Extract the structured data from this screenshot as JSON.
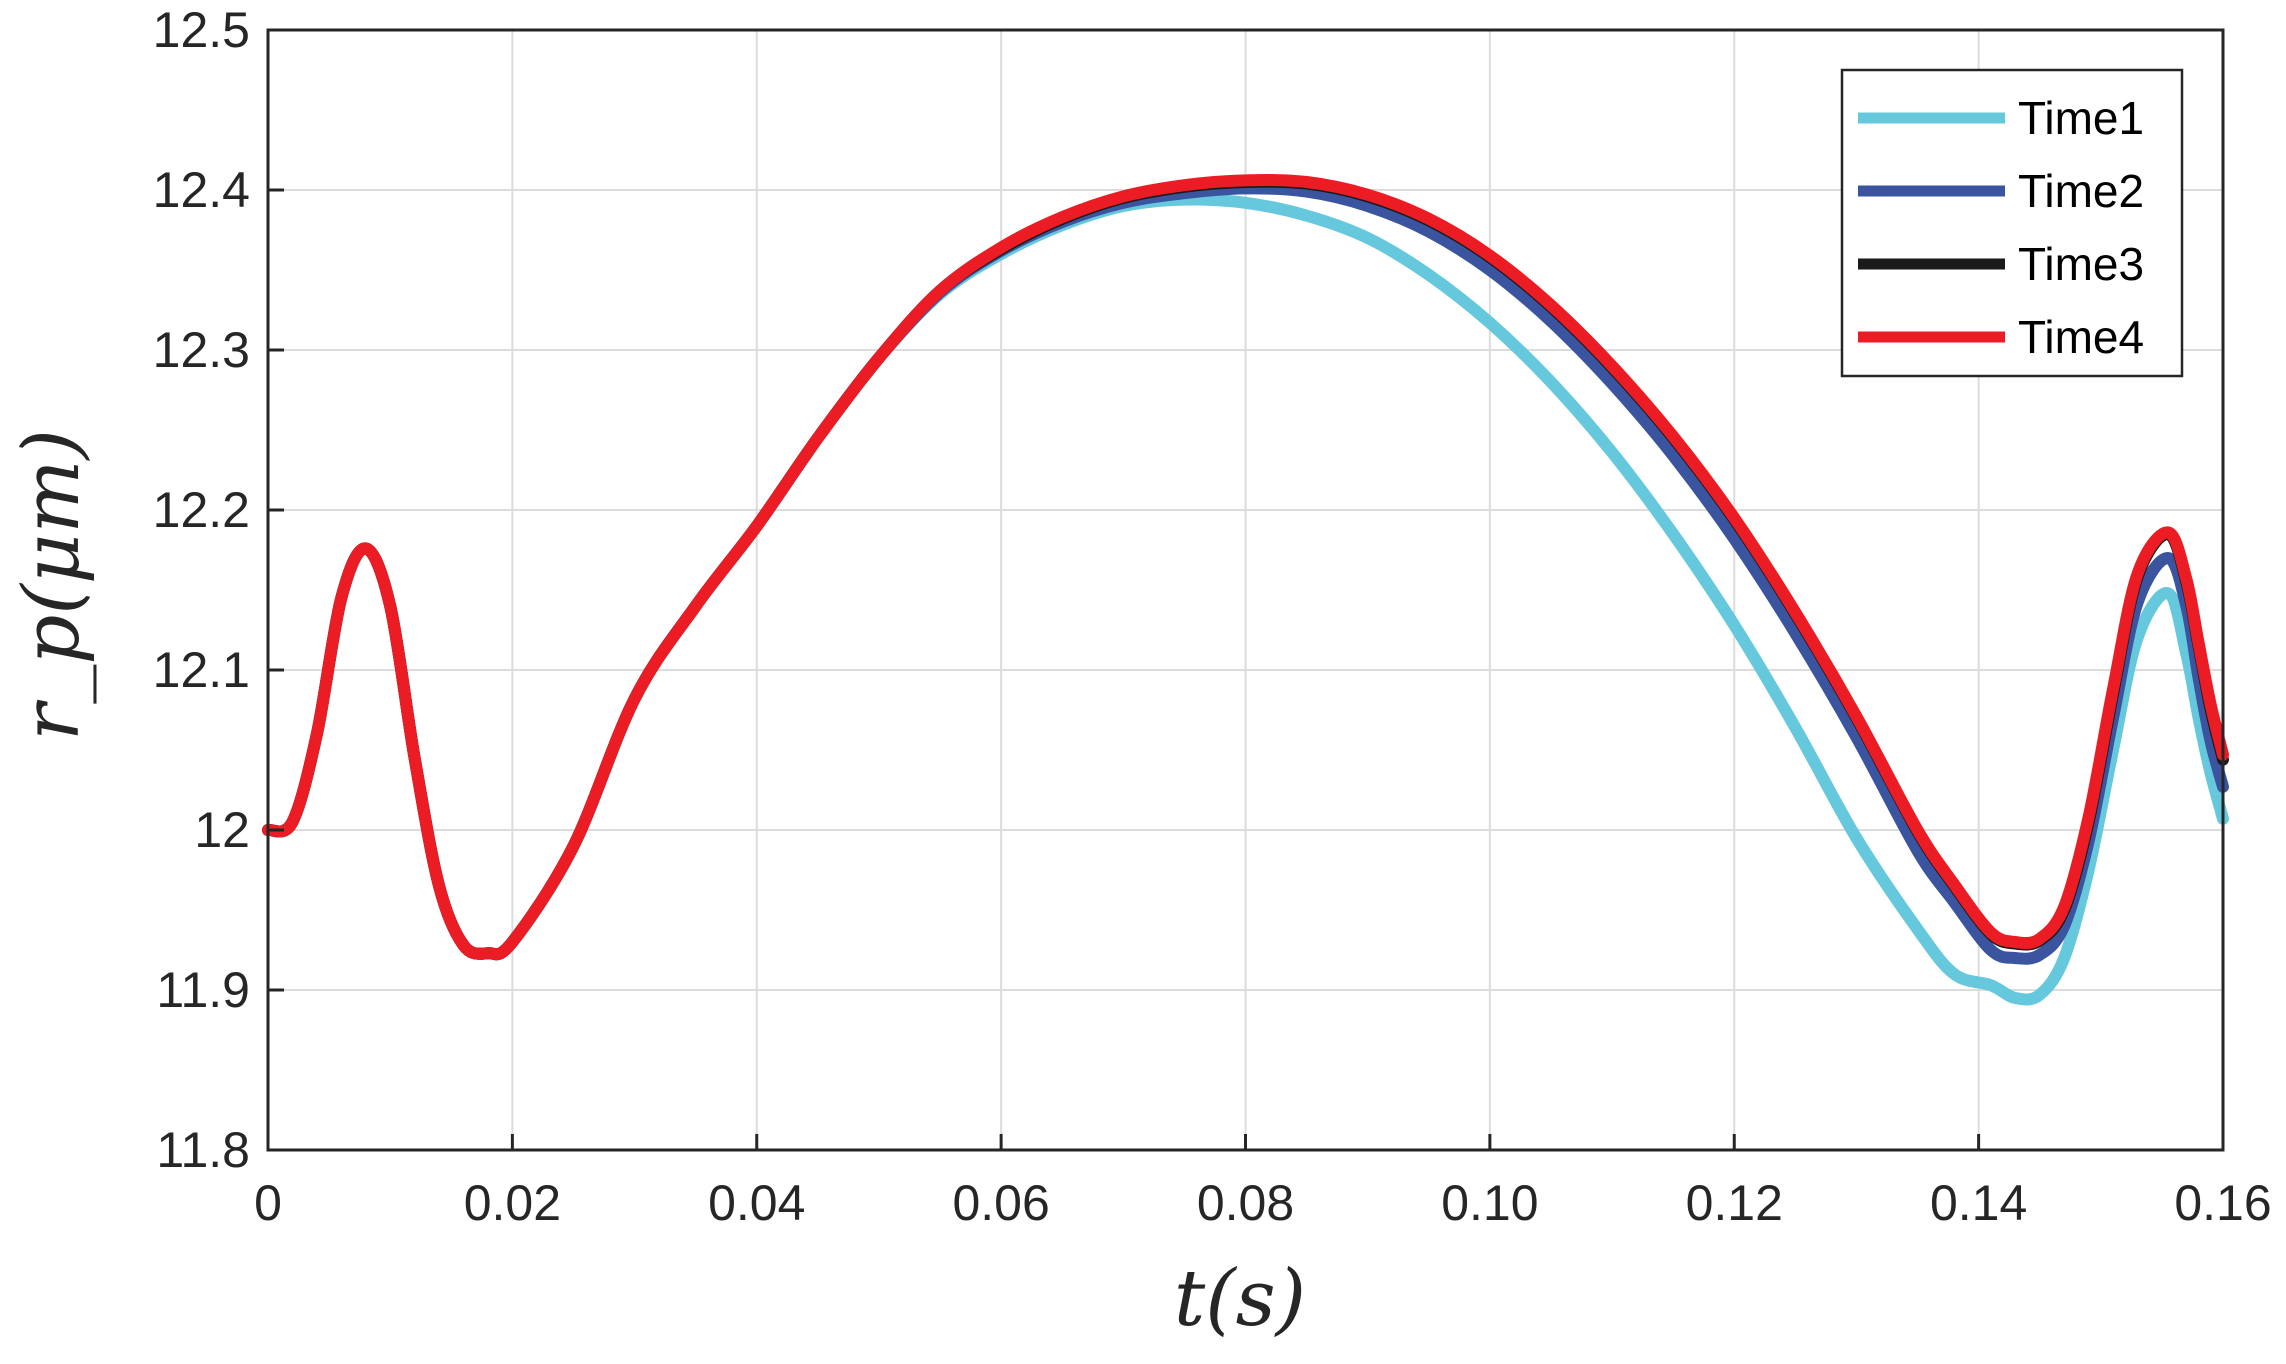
{
  "chart_data": {
    "type": "line",
    "xlabel": "t(s)",
    "ylabel": "r_p(μm)",
    "xlim": [
      0,
      0.16
    ],
    "ylim": [
      11.8,
      12.5
    ],
    "xticks": [
      "0",
      "0.02",
      "0.04",
      "0.06",
      "0.08",
      "0.10",
      "0.12",
      "0.14",
      "0.16"
    ],
    "yticks": [
      "11.8",
      "11.9",
      "12",
      "12.1",
      "12.2",
      "12.3",
      "12.4",
      "12.5"
    ],
    "grid": true,
    "legend_position": "top-right",
    "x": [
      0,
      0.002,
      0.004,
      0.006,
      0.008,
      0.01,
      0.012,
      0.014,
      0.016,
      0.018,
      0.02,
      0.025,
      0.03,
      0.035,
      0.04,
      0.045,
      0.05,
      0.055,
      0.06,
      0.065,
      0.07,
      0.075,
      0.08,
      0.085,
      0.09,
      0.095,
      0.1,
      0.105,
      0.11,
      0.115,
      0.12,
      0.125,
      0.13,
      0.135,
      0.138,
      0.141,
      0.143,
      0.145,
      0.147,
      0.149,
      0.151,
      0.153,
      0.1555,
      0.157,
      0.158,
      0.159,
      0.16
    ],
    "series": [
      {
        "name": "Time1",
        "color": "#66c8dc",
        "values": [
          12.0,
          12.005,
          12.06,
          12.145,
          12.176,
          12.14,
          12.045,
          11.965,
          11.928,
          11.923,
          11.93,
          11.99,
          12.082,
          12.14,
          12.19,
          12.245,
          12.295,
          12.335,
          12.36,
          12.378,
          12.39,
          12.394,
          12.392,
          12.384,
          12.37,
          12.347,
          12.317,
          12.28,
          12.236,
          12.185,
          12.128,
          12.064,
          11.995,
          11.938,
          11.91,
          11.903,
          11.895,
          11.897,
          11.92,
          11.975,
          12.05,
          12.12,
          12.148,
          12.11,
          12.07,
          12.035,
          12.007
        ]
      },
      {
        "name": "Time2",
        "color": "#3a54a0",
        "values": [
          12.0,
          12.005,
          12.06,
          12.145,
          12.176,
          12.14,
          12.045,
          11.965,
          11.928,
          11.923,
          11.93,
          11.99,
          12.082,
          12.14,
          12.19,
          12.245,
          12.295,
          12.336,
          12.362,
          12.38,
          12.392,
          12.398,
          12.401,
          12.399,
          12.39,
          12.374,
          12.35,
          12.318,
          12.279,
          12.234,
          12.182,
          12.123,
          12.058,
          11.987,
          11.955,
          11.925,
          11.92,
          11.922,
          11.94,
          11.993,
          12.07,
          12.142,
          12.17,
          12.14,
          12.095,
          12.055,
          12.027
        ]
      },
      {
        "name": "Time3",
        "color": "#1a1a1a",
        "values": [
          12.0,
          12.005,
          12.06,
          12.145,
          12.176,
          12.14,
          12.045,
          11.965,
          11.928,
          11.923,
          11.93,
          11.99,
          12.082,
          12.14,
          12.19,
          12.245,
          12.295,
          12.337,
          12.363,
          12.382,
          12.395,
          12.402,
          12.405,
          12.404,
          12.396,
          12.381,
          12.358,
          12.327,
          12.289,
          12.245,
          12.194,
          12.135,
          12.07,
          11.999,
          11.965,
          11.935,
          11.929,
          11.931,
          11.95,
          12.005,
          12.085,
          12.158,
          12.185,
          12.155,
          12.115,
          12.075,
          12.044
        ]
      },
      {
        "name": "Time4",
        "color": "#ec1c24",
        "values": [
          12.0,
          12.005,
          12.06,
          12.145,
          12.176,
          12.14,
          12.045,
          11.965,
          11.928,
          11.923,
          11.93,
          11.99,
          12.082,
          12.14,
          12.19,
          12.245,
          12.295,
          12.337,
          12.364,
          12.383,
          12.396,
          12.403,
          12.406,
          12.405,
          12.397,
          12.382,
          12.359,
          12.328,
          12.29,
          12.246,
          12.195,
          12.136,
          12.071,
          12.0,
          11.966,
          11.936,
          11.93,
          11.932,
          11.952,
          12.008,
          12.088,
          12.16,
          12.186,
          12.157,
          12.117,
          12.078,
          12.047
        ]
      }
    ]
  }
}
